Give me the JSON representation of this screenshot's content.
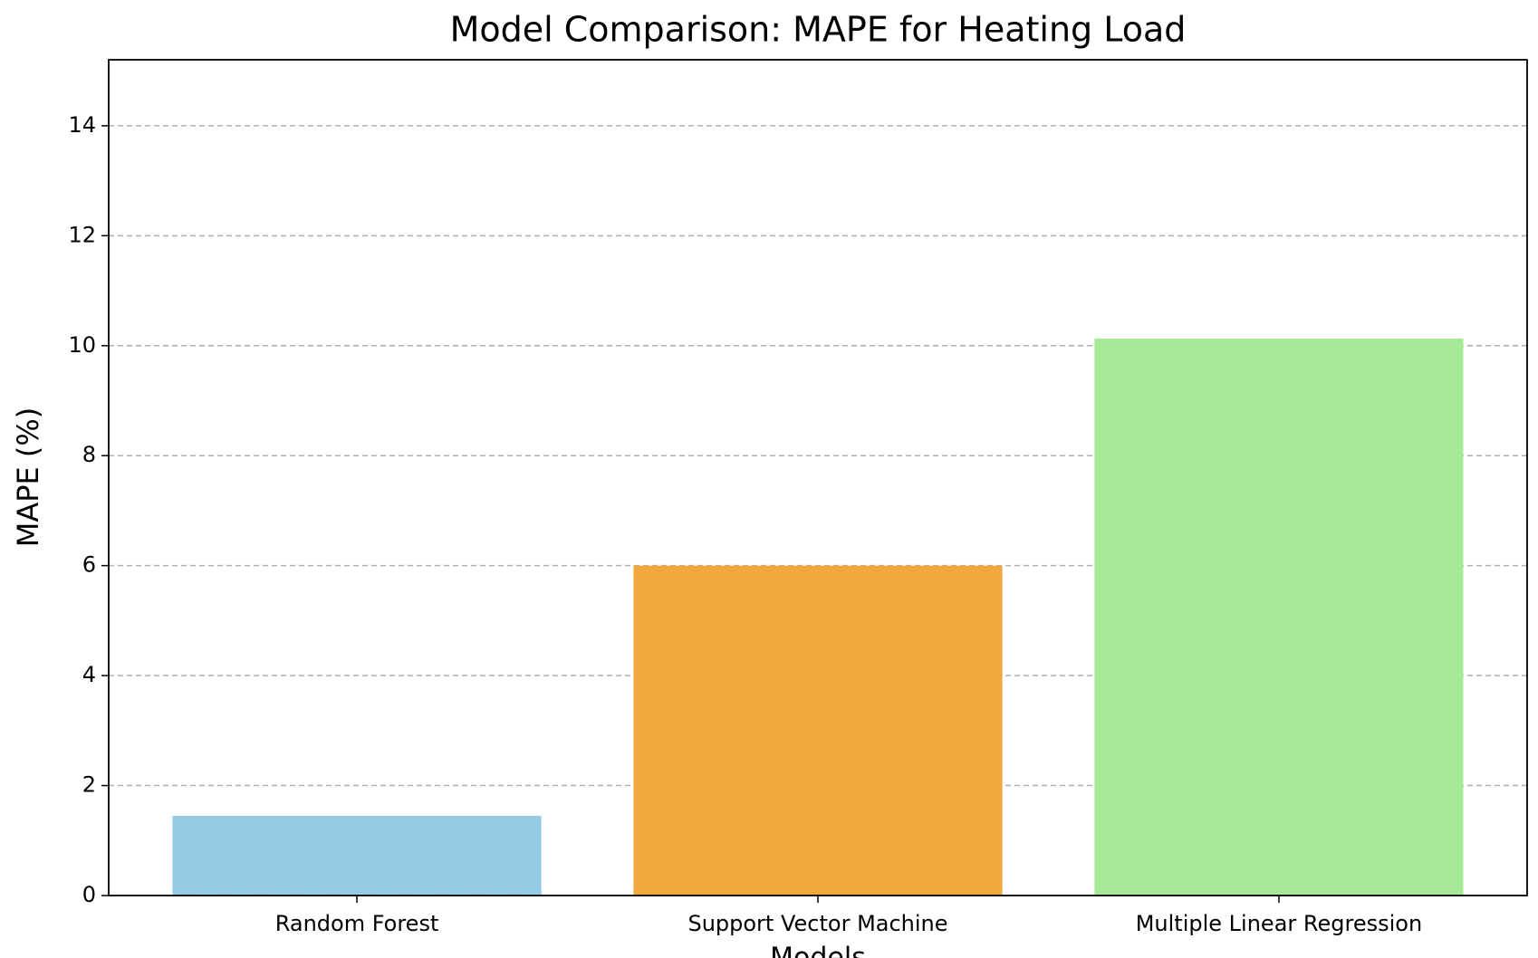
{
  "chart_data": {
    "type": "bar",
    "title": "Model Comparison: MAPE for Heating Load",
    "x_label": "Models",
    "y_label": "MAPE (%)",
    "categories": [
      "Random Forest",
      "Support Vector Machine",
      "Multiple Linear Regression"
    ],
    "values": [
      1.45,
      6.0,
      10.13
    ],
    "colors": [
      "#96cbe6",
      "#f0a83c",
      "#a5e996"
    ],
    "ylim": [
      0,
      15.2
    ],
    "yticks": [
      0,
      2,
      4,
      6,
      8,
      10,
      12,
      14
    ],
    "grid": true
  }
}
